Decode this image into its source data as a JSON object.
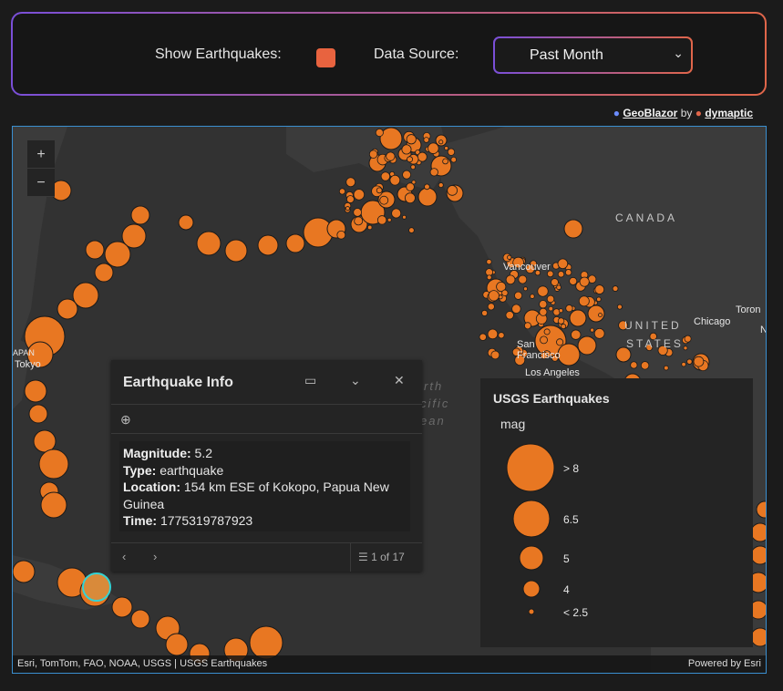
{
  "controls": {
    "show_label": "Show Earthquakes:",
    "source_label": "Data Source:",
    "source_value": "Past Month",
    "checkbox_color": "#e8633f"
  },
  "credit": {
    "geoblazor": "GeoBlazor",
    "by": "by",
    "dymaptic": "dymaptic"
  },
  "map": {
    "zoom_in": "+",
    "zoom_out": "−",
    "places": [
      "Vancouver",
      "San Francisco",
      "Los Angeles",
      "Chicago",
      "Toron",
      "N",
      "Tokyo",
      "APAN"
    ],
    "countries": [
      "CANADA",
      "UNITED",
      "STATES"
    ],
    "ocean": [
      "rth",
      "cific",
      "ean"
    ],
    "attribution": "Esri, TomTom, FAO, NOAA, USGS | USGS Earthquakes",
    "powered": "Powered by Esri",
    "marker_color": "#e87722"
  },
  "popup": {
    "title": "Earthquake Info",
    "fields": [
      {
        "label": "Magnitude:",
        "value": "5.2"
      },
      {
        "label": "Type:",
        "value": "earthquake"
      },
      {
        "label": "Location:",
        "value": "154 km ESE of Kokopo, Papua New Guinea"
      },
      {
        "label": "Time:",
        "value": "1775319787923"
      }
    ],
    "pager": "1 of 17"
  },
  "legend": {
    "title": "USGS Earthquakes",
    "field": "mag",
    "classes": [
      "> 8",
      "6.5",
      "5",
      "4",
      "< 2.5"
    ]
  }
}
